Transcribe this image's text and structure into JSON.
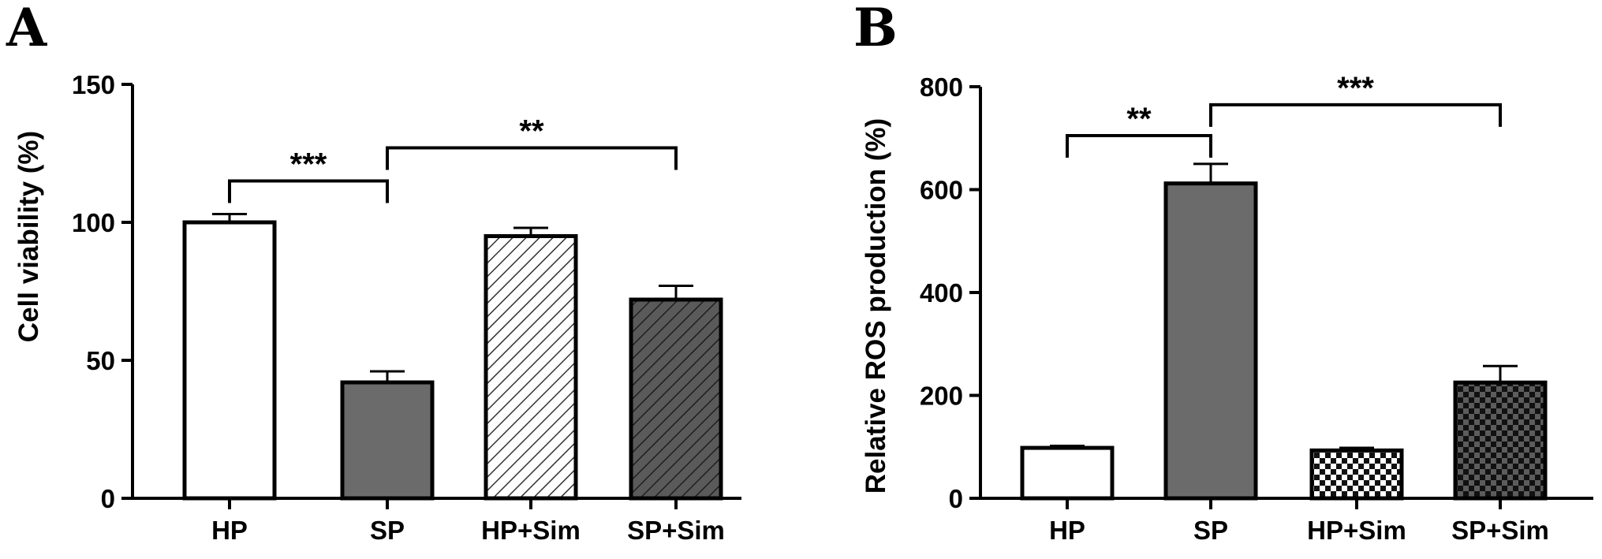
{
  "chart_data": [
    {
      "type": "bar",
      "panel": "A",
      "ylabel": "Cell viability (%)",
      "xlabel": "",
      "ylim": [
        0,
        150
      ],
      "yticks": [
        0,
        50,
        100,
        150
      ],
      "categories": [
        "HP",
        "SP",
        "HP+Sim",
        "SP+Sim"
      ],
      "values": [
        100,
        42,
        95,
        72
      ],
      "errors": [
        3,
        4,
        3,
        5
      ],
      "fills": [
        "white",
        "solid",
        "hatch-light",
        "hatch-dark"
      ],
      "colors": {
        "solid": "#6b6b6b",
        "dark": "#555555"
      },
      "significance": [
        {
          "from": 0,
          "to": 1,
          "label": "***",
          "y": 115
        },
        {
          "from": 1,
          "to": 3,
          "label": "**",
          "y": 127
        }
      ]
    },
    {
      "type": "bar",
      "panel": "B",
      "ylabel": "Relative ROS production (%)",
      "xlabel": "",
      "ylim": [
        0,
        800
      ],
      "yticks": [
        0,
        200,
        400,
        600,
        800
      ],
      "categories": [
        "HP",
        "SP",
        "HP+Sim",
        "SP+Sim"
      ],
      "values": [
        98,
        612,
        93,
        225
      ],
      "errors": [
        4,
        38,
        5,
        32
      ],
      "fills": [
        "white",
        "solid",
        "checker-light",
        "checker-dark"
      ],
      "colors": {
        "solid": "#6b6b6b",
        "dark": "#3a3a3a"
      },
      "significance": [
        {
          "from": 0,
          "to": 1,
          "label": "**",
          "y": 705
        },
        {
          "from": 1,
          "to": 3,
          "label": "***",
          "y": 765
        }
      ]
    }
  ]
}
